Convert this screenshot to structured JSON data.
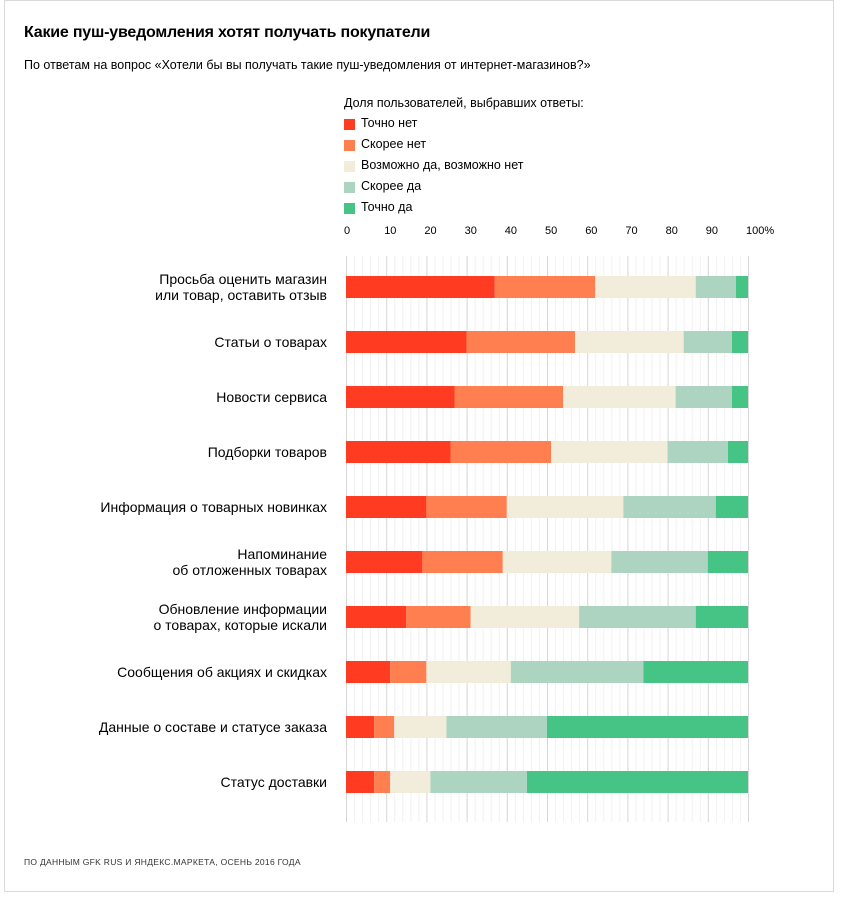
{
  "chart_data": {
    "type": "bar",
    "orientation": "horizontal",
    "stacked": true,
    "title": "Какие пуш-уведомления хотят получать покупатели",
    "subtitle": "По ответам на вопрос «Хотели бы вы получать такие пуш-уведомления от интернет-магазинов?»",
    "legend_title": "Доля пользователей, выбравших ответы:",
    "x_ticks": [
      "0",
      "10",
      "20",
      "30",
      "40",
      "50",
      "60",
      "70",
      "80",
      "90",
      "100%"
    ],
    "xlim": [
      0,
      100
    ],
    "grid": true,
    "categories": [
      [
        "Просьба оценить магазин",
        "или товар, оставить отзыв"
      ],
      [
        "Статьи о товарах"
      ],
      [
        "Новости сервиса"
      ],
      [
        "Подборки товаров"
      ],
      [
        "Информация о товарных новинках"
      ],
      [
        "Напоминание",
        "об отложенных товарах"
      ],
      [
        "Обновление информации",
        "о товарах, которые искали"
      ],
      [
        "Сообщения об акциях и скидках"
      ],
      [
        "Данные о составе и статусе заказа"
      ],
      [
        "Статус доставки"
      ]
    ],
    "series": [
      {
        "name": "Точно нет",
        "color": "#ff3b21",
        "values": [
          37,
          30,
          27,
          26,
          20,
          19,
          15,
          11,
          7,
          7
        ]
      },
      {
        "name": "Скорее нет",
        "color": "#ff7f50",
        "values": [
          25,
          27,
          27,
          25,
          20,
          20,
          16,
          9,
          5,
          4
        ]
      },
      {
        "name": "Возможно да, возможно нет",
        "color": "#f2ecdb",
        "values": [
          25,
          27,
          28,
          29,
          29,
          27,
          27,
          21,
          13,
          10
        ]
      },
      {
        "name": "Скорее да",
        "color": "#acd4c1",
        "values": [
          10,
          12,
          14,
          15,
          23,
          24,
          29,
          33,
          25,
          24
        ]
      },
      {
        "name": "Точно да",
        "color": "#45c485",
        "values": [
          3,
          4,
          4,
          5,
          8,
          10,
          13,
          26,
          50,
          55
        ]
      }
    ]
  },
  "footnote": "ПО ДАННЫМ GFK RUS И ЯНДЕКС.МАРКЕТА, ОСЕНЬ 2016 ГОДА"
}
